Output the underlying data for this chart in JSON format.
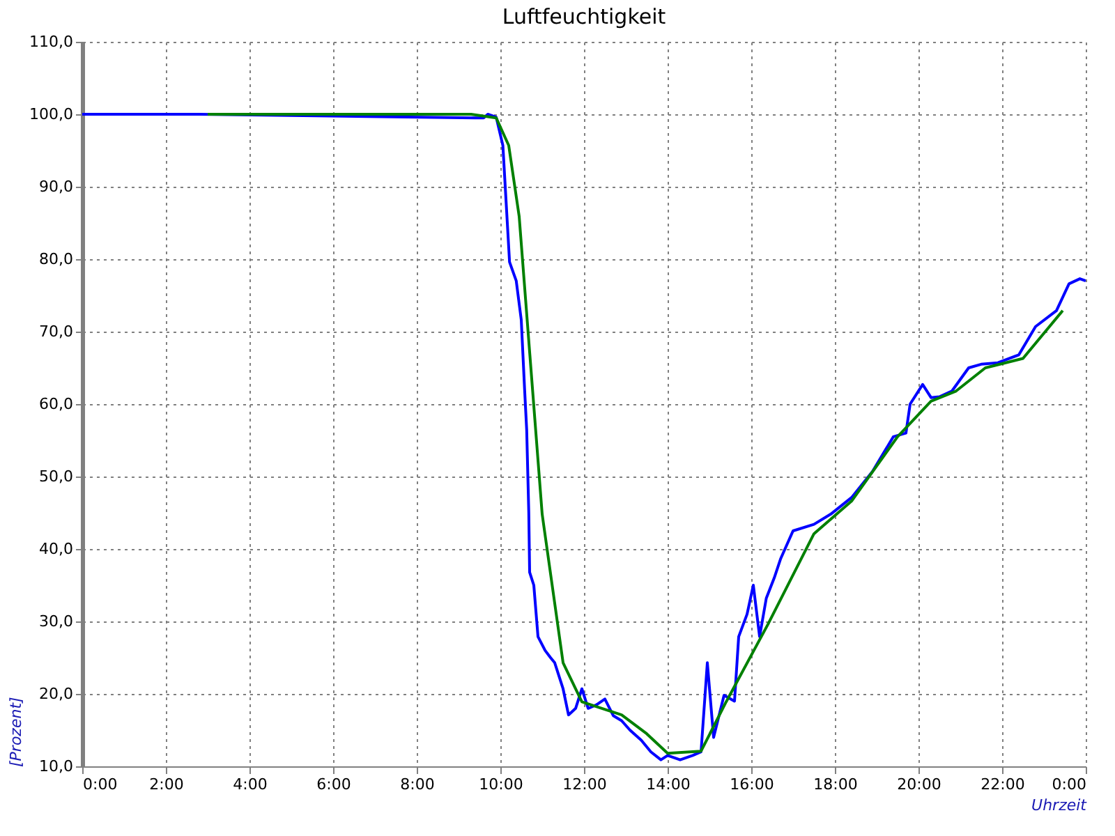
{
  "chart_data": {
    "type": "line",
    "title": "Luftfeuchtigkeit",
    "xlabel": "Uhrzeit",
    "ylabel": "[Prozent]",
    "xlim": [
      0,
      24
    ],
    "ylim": [
      10,
      110
    ],
    "xticks": [
      {
        "value": 0,
        "label": "0:00"
      },
      {
        "value": 2,
        "label": "2:00"
      },
      {
        "value": 4,
        "label": "4:00"
      },
      {
        "value": 6,
        "label": "6:00"
      },
      {
        "value": 8,
        "label": "8:00"
      },
      {
        "value": 10,
        "label": "10:00"
      },
      {
        "value": 12,
        "label": "12:00"
      },
      {
        "value": 14,
        "label": "14:00"
      },
      {
        "value": 16,
        "label": "16:00"
      },
      {
        "value": 18,
        "label": "18:00"
      },
      {
        "value": 20,
        "label": "20:00"
      },
      {
        "value": 22,
        "label": "22:00"
      },
      {
        "value": 24,
        "label": "0:00"
      }
    ],
    "yticks": [
      {
        "value": 10,
        "label": "10,0"
      },
      {
        "value": 20,
        "label": "20,0"
      },
      {
        "value": 30,
        "label": "30,0"
      },
      {
        "value": 40,
        "label": "40,0"
      },
      {
        "value": 50,
        "label": "50,0"
      },
      {
        "value": 60,
        "label": "60,0"
      },
      {
        "value": 70,
        "label": "70,0"
      },
      {
        "value": 80,
        "label": "80,0"
      },
      {
        "value": 90,
        "label": "90,0"
      },
      {
        "value": 100,
        "label": "100,0"
      },
      {
        "value": 110,
        "label": "110,0"
      }
    ],
    "grid": true,
    "marker": "none",
    "line_style": "solid",
    "series": [
      {
        "color": "#0000ff",
        "x": [
          0,
          1,
          2,
          2.8,
          9.4,
          9.6,
          9.7,
          9.9,
          10.06,
          10.22,
          10.38,
          10.5,
          10.58,
          10.63,
          10.68,
          10.7,
          10.8,
          10.9,
          11.07,
          11.2,
          11.3,
          11.5,
          11.63,
          11.8,
          11.95,
          12.1,
          12.3,
          12.5,
          12.7,
          12.9,
          13.1,
          13.37,
          13.6,
          13.84,
          14.0,
          14.3,
          14.6,
          14.8,
          14.95,
          15.1,
          15.35,
          15.6,
          15.7,
          15.9,
          16.05,
          16.2,
          16.36,
          16.55,
          16.7,
          17,
          17.5,
          17.9,
          18.4,
          18.9,
          19.4,
          19.7,
          19.8,
          20.1,
          20.3,
          20.5,
          20.8,
          21.2,
          21.5,
          21.9,
          22.4,
          22.8,
          23.3,
          23.6,
          23.86,
          24
        ],
        "values": [
          100,
          100,
          100,
          100,
          99.5,
          99.5,
          100,
          99.6,
          95.7,
          79.6,
          77,
          71.6,
          62,
          56.4,
          45,
          36.8,
          35,
          27.9,
          26,
          25,
          24.3,
          20.7,
          17.1,
          18,
          20.7,
          18,
          18.5,
          19.3,
          17,
          16.3,
          15,
          13.6,
          12,
          10.9,
          11.5,
          10.9,
          11.5,
          12,
          24.3,
          14,
          19.8,
          19,
          27.9,
          31,
          35,
          27.9,
          33.2,
          36,
          38.6,
          42.5,
          43.4,
          44.8,
          47.1,
          50.7,
          55.5,
          56,
          60,
          62.7,
          60.9,
          61,
          61.8,
          65,
          65.5,
          65.7,
          66.8,
          70.7,
          72.9,
          76.6,
          77.3,
          77
        ]
      },
      {
        "color": "#008000",
        "x": [
          3,
          6,
          9.3,
          9.9,
          10.2,
          10.45,
          11,
          11.5,
          11.95,
          12.9,
          13.5,
          14,
          14.8,
          15.4,
          16.4,
          17.5,
          18.4,
          19.5,
          20.3,
          20.9,
          21.6,
          22.5,
          23.45
        ],
        "values": [
          100,
          100,
          100,
          99.5,
          95.7,
          85.9,
          44.8,
          24.3,
          18.9,
          17.1,
          14.5,
          11.8,
          12.1,
          18.9,
          29.6,
          42.1,
          46.6,
          55.5,
          60.4,
          61.8,
          65,
          66.3,
          72.9
        ]
      }
    ]
  }
}
